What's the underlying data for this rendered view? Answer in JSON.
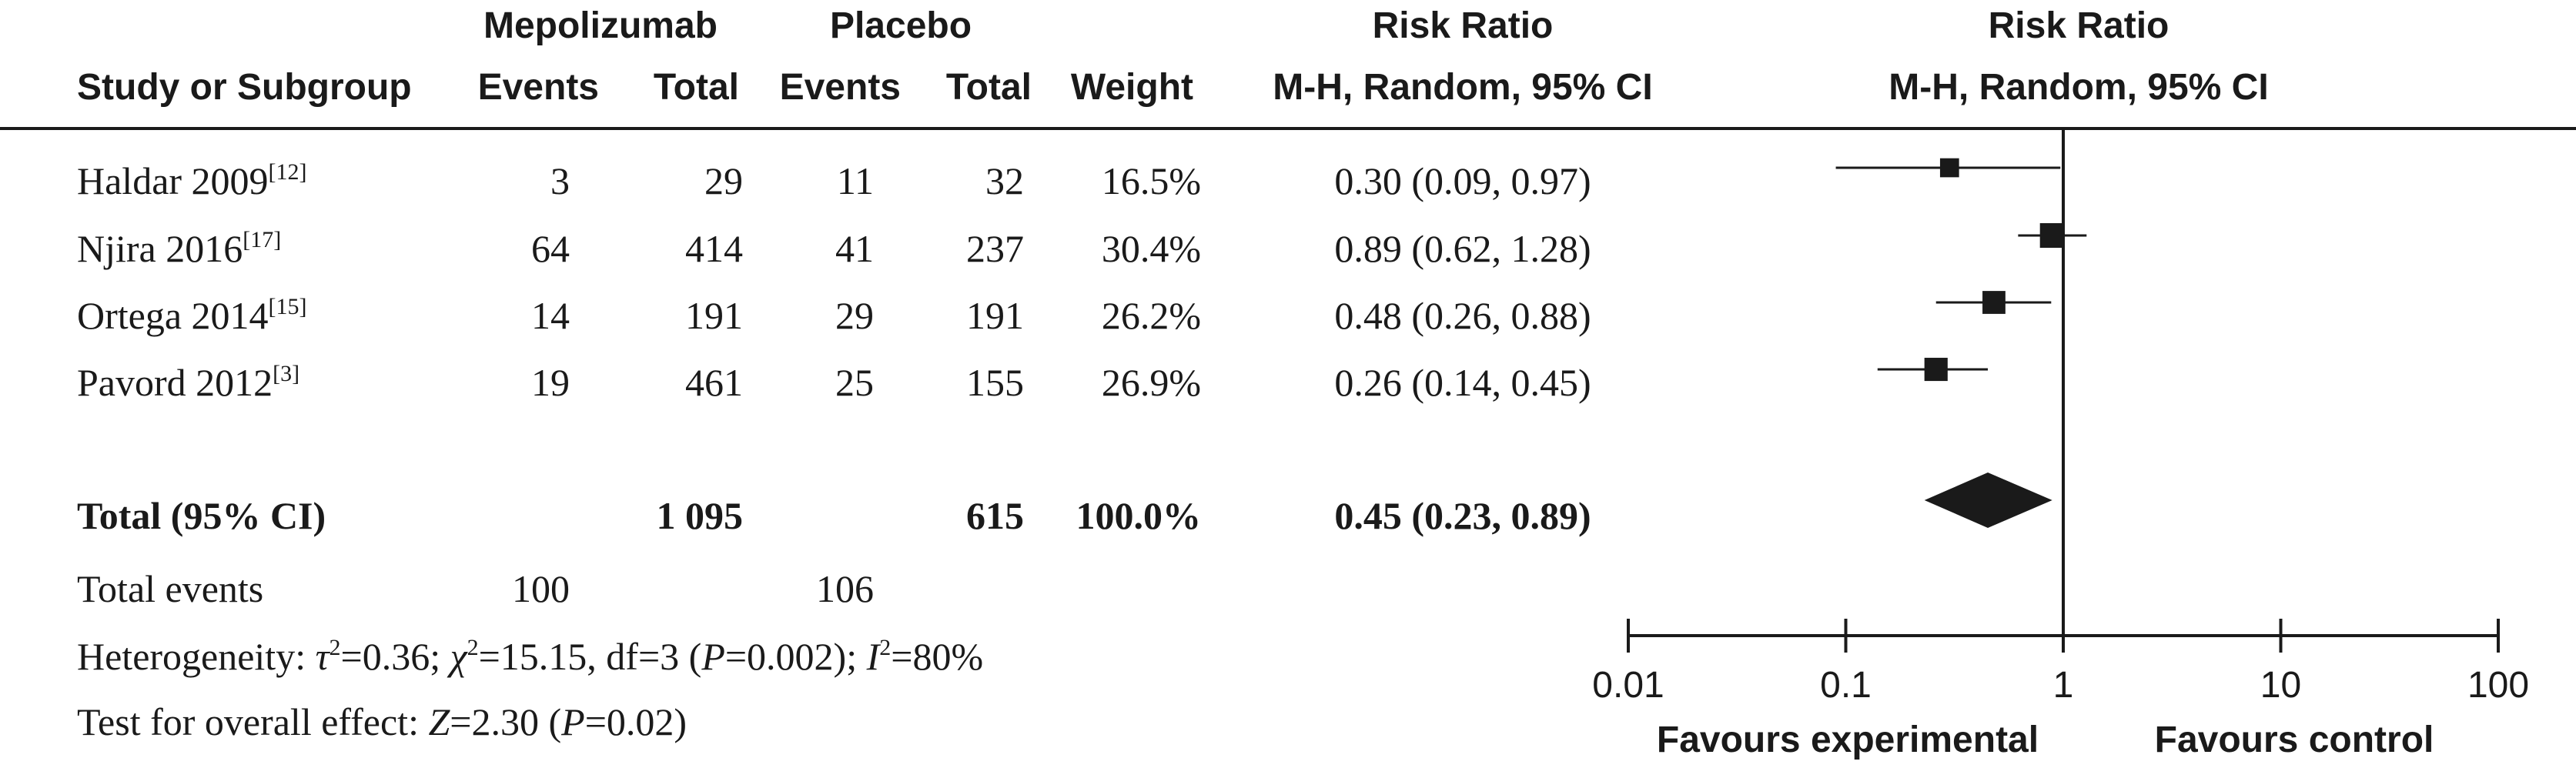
{
  "header": {
    "group_exp": "Mepolizumab",
    "group_ctrl": "Placebo",
    "study_label": "Study or Subgroup",
    "events_label": "Events",
    "total_label": "Total",
    "weight_label": "Weight",
    "rr_title": "Risk Ratio",
    "rr_method": "M-H, Random, 95% CI",
    "plot_title": "Risk Ratio",
    "plot_method": "M-H, Random, 95% CI"
  },
  "studies": [
    {
      "name": "Haldar 2009",
      "ref": "[12]",
      "exp_events": "3",
      "exp_total": "29",
      "ctrl_events": "11",
      "ctrl_total": "32",
      "weight": "16.5%",
      "ci_text": "0.30 (0.09, 0.97)"
    },
    {
      "name": "Njira 2016",
      "ref": "[17]",
      "exp_events": "64",
      "exp_total": "414",
      "ctrl_events": "41",
      "ctrl_total": "237",
      "weight": "30.4%",
      "ci_text": "0.89 (0.62, 1.28)"
    },
    {
      "name": "Ortega 2014",
      "ref": "[15]",
      "exp_events": "14",
      "exp_total": "191",
      "ctrl_events": "29",
      "ctrl_total": "191",
      "weight": "26.2%",
      "ci_text": "0.48 (0.26, 0.88)"
    },
    {
      "name": "Pavord 2012",
      "ref": "[3]",
      "exp_events": "19",
      "exp_total": "461",
      "ctrl_events": "25",
      "ctrl_total": "155",
      "weight": "26.9%",
      "ci_text": "0.26 (0.14, 0.45)"
    }
  ],
  "total": {
    "label": "Total (95% CI)",
    "exp_total": "1 095",
    "ctrl_total": "615",
    "weight": "100.0%",
    "ci_text": "0.45 (0.23, 0.89)"
  },
  "total_events": {
    "label": "Total events",
    "exp": "100",
    "ctrl": "106"
  },
  "heterogeneity": {
    "prefix": "Heterogeneity: ",
    "tau": "τ",
    "tau_val": "=0.36; ",
    "chi": "χ",
    "chi_val": "=15.15, df=3 (",
    "p": "P",
    "p_val": "=0.002); ",
    "i": "I",
    "i_val": "=80%",
    "sq": "2"
  },
  "overall": {
    "prefix": "Test for overall effect: ",
    "z": "Z",
    "z_val": "=2.30 (",
    "p": "P",
    "p_val": "=0.02)"
  },
  "favours": {
    "left": "Favours experimental",
    "right": "Favours control"
  },
  "chart_data": {
    "type": "forest",
    "scale": "log",
    "xlim": [
      0.01,
      100
    ],
    "ticks": [
      0.01,
      0.1,
      1,
      10,
      100
    ],
    "tick_labels": [
      "0.01",
      "0.1",
      "1",
      "10",
      "100"
    ],
    "reference_line": 1,
    "studies": [
      {
        "name": "Haldar 2009",
        "rr": 0.3,
        "lower": 0.09,
        "upper": 0.97,
        "weight": 16.5
      },
      {
        "name": "Njira 2016",
        "rr": 0.89,
        "lower": 0.62,
        "upper": 1.28,
        "weight": 30.4
      },
      {
        "name": "Ortega 2014",
        "rr": 0.48,
        "lower": 0.26,
        "upper": 0.88,
        "weight": 26.2
      },
      {
        "name": "Pavord 2012",
        "rr": 0.26,
        "lower": 0.14,
        "upper": 0.45,
        "weight": 26.9
      }
    ],
    "pooled": {
      "name": "Total (95% CI)",
      "rr": 0.45,
      "lower": 0.23,
      "upper": 0.89
    },
    "colors": {
      "ink": "#1a1a1a"
    }
  }
}
